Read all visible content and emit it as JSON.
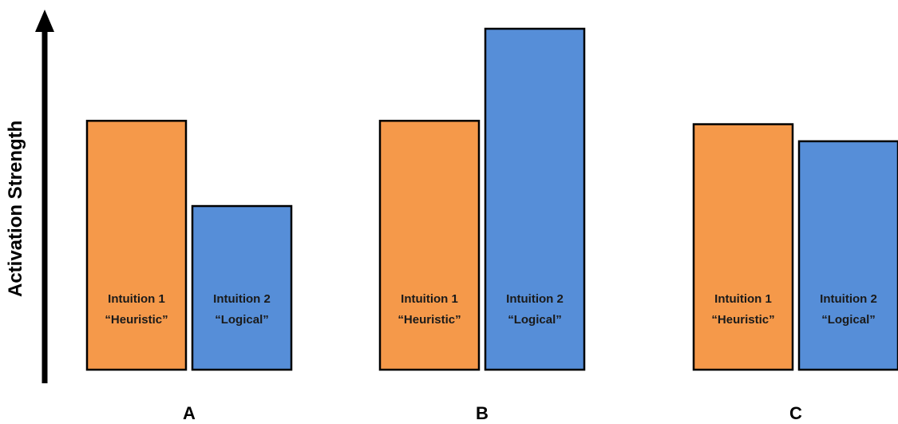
{
  "chart_data": {
    "type": "bar",
    "title": "",
    "xlabel": "",
    "ylabel": "Activation  Strength",
    "ylim": [
      0,
      100
    ],
    "grid": false,
    "axis_ticks": false,
    "groups": [
      {
        "label": "A",
        "bars": [
          {
            "label_line1": "Intuition 1",
            "label_line2": "“Heuristic”",
            "value": 73,
            "color": "#f5994a"
          },
          {
            "label_line1": "Intuition 2",
            "label_line2": "“Logical”",
            "value": 48,
            "color": "#568ed8"
          }
        ]
      },
      {
        "label": "B",
        "bars": [
          {
            "label_line1": "Intuition 1",
            "label_line2": "“Heuristic”",
            "value": 73,
            "color": "#f5994a"
          },
          {
            "label_line1": "Intuition 2",
            "label_line2": "“Logical”",
            "value": 100,
            "color": "#568ed8"
          }
        ]
      },
      {
        "label": "C",
        "bars": [
          {
            "label_line1": "Intuition 1",
            "label_line2": "“Heuristic”",
            "value": 72,
            "color": "#f5994a"
          },
          {
            "label_line1": "Intuition 2",
            "label_line2": "“Logical”",
            "value": 67,
            "color": "#568ed8"
          }
        ]
      }
    ]
  }
}
